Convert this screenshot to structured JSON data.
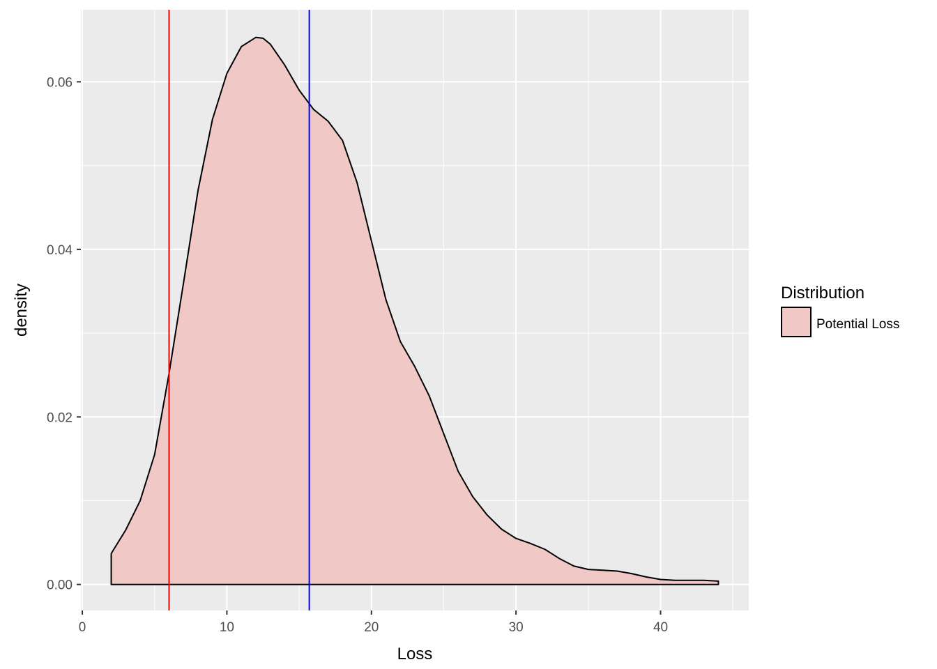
{
  "chart_data": {
    "type": "area",
    "title": "",
    "xlabel": "Loss",
    "ylabel": "density",
    "xlim": [
      -0.1,
      46.1
    ],
    "ylim": [
      -0.0031,
      0.0686
    ],
    "x_ticks": [
      0,
      10,
      20,
      30,
      40
    ],
    "x_tick_labels": [
      "0",
      "10",
      "20",
      "30",
      "40"
    ],
    "y_ticks": [
      0.0,
      0.02,
      0.04,
      0.06
    ],
    "y_tick_labels": [
      "0.00",
      "0.02",
      "0.04",
      "0.06"
    ],
    "grid": true,
    "legend": {
      "title": "Distribution",
      "position": "right",
      "entries": [
        "Potential Loss"
      ]
    },
    "series": [
      {
        "name": "Potential Loss",
        "fill": "#f0c8c6",
        "stroke": "#000000",
        "x": [
          2.0,
          3.0,
          4.0,
          5.0,
          6.0,
          7.0,
          8.0,
          9.0,
          10.0,
          11.0,
          12.0,
          12.5,
          13.0,
          14.0,
          15.0,
          16.0,
          17.0,
          18.0,
          19.0,
          20.0,
          21.0,
          22.0,
          23.0,
          24.0,
          25.0,
          26.0,
          27.0,
          28.0,
          29.0,
          30.0,
          31.0,
          32.0,
          33.0,
          34.0,
          35.0,
          36.0,
          37.0,
          38.0,
          39.0,
          40.0,
          41.0,
          42.0,
          43.0,
          44.0
        ],
        "y": [
          0.0037,
          0.0065,
          0.01,
          0.0155,
          0.0252,
          0.036,
          0.047,
          0.0555,
          0.061,
          0.0642,
          0.0653,
          0.0652,
          0.0645,
          0.062,
          0.059,
          0.0567,
          0.0553,
          0.053,
          0.048,
          0.041,
          0.034,
          0.029,
          0.026,
          0.0225,
          0.018,
          0.0135,
          0.0105,
          0.0083,
          0.0066,
          0.0055,
          0.0049,
          0.0042,
          0.0031,
          0.0022,
          0.0018,
          0.0017,
          0.0016,
          0.0013,
          0.0009,
          0.0006,
          0.0005,
          0.0005,
          0.0005,
          0.0004
        ]
      }
    ],
    "vlines": [
      {
        "x": 6.0,
        "color": "#ff0000"
      },
      {
        "x": 15.7,
        "color": "#0000ff"
      }
    ],
    "colors": {
      "panel": "#ebebeb",
      "grid": "#ffffff",
      "fill": "#f0c8c6",
      "outline": "#000000"
    }
  }
}
